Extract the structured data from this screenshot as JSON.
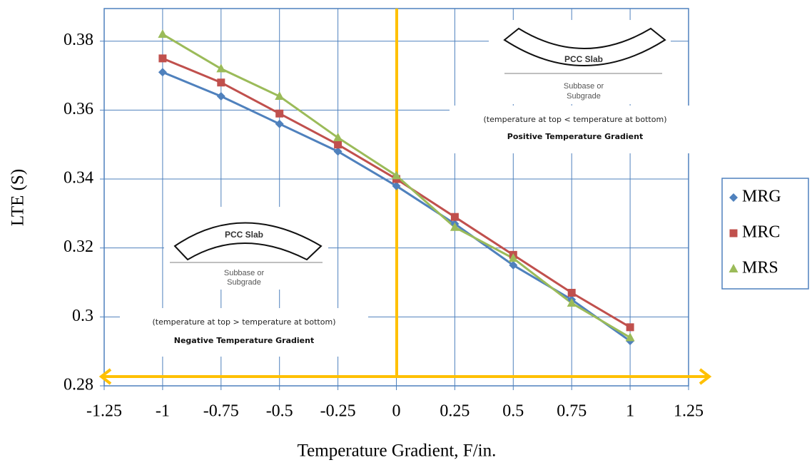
{
  "chart_data": {
    "type": "line",
    "x_label": "Temperature Gradient, F/in.",
    "y_label": "LTE (S)",
    "x": [
      -1,
      -0.75,
      -0.5,
      -0.25,
      0,
      0.25,
      0.5,
      0.75,
      1
    ],
    "series": [
      {
        "name": "MRG",
        "color": "#4f81bd",
        "marker": "diamond",
        "values": [
          0.371,
          0.364,
          0.356,
          0.348,
          0.338,
          0.327,
          0.315,
          0.305,
          0.293
        ]
      },
      {
        "name": "MRC",
        "color": "#c0504d",
        "marker": "square",
        "values": [
          0.375,
          0.368,
          0.359,
          0.35,
          0.34,
          0.329,
          0.318,
          0.307,
          0.297
        ]
      },
      {
        "name": "MRS",
        "color": "#9bbb59",
        "marker": "triangle",
        "values": [
          0.382,
          0.372,
          0.364,
          0.352,
          0.341,
          0.326,
          0.317,
          0.304,
          0.294
        ]
      }
    ],
    "xlim": [
      -1.25,
      1.25
    ],
    "xticks": [
      -1.25,
      -1,
      -0.75,
      -0.5,
      -0.25,
      0,
      0.25,
      0.5,
      0.75,
      1,
      1.25
    ],
    "ylim": [
      0.28,
      0.38946
    ],
    "yticks": [
      0.28,
      0.3,
      0.32,
      0.34,
      0.36,
      0.38
    ],
    "grid": true,
    "legend": "right",
    "annotations": {
      "positive": {
        "slab": "PCC Slab",
        "base1": "Subbase or",
        "base2": "Subgrade",
        "note": "(temperature at top < temperature at bottom)",
        "title": "Positive Temperature Gradient"
      },
      "negative": {
        "slab": "PCC Slab",
        "base1": "Subbase or",
        "base2": "Subgrade",
        "note": "(temperature at top > temperature at bottom)",
        "title": "Negative Temperature Gradient"
      }
    }
  }
}
